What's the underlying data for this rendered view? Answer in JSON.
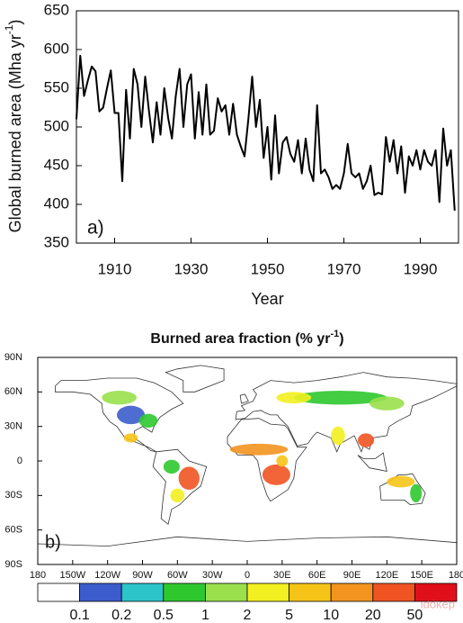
{
  "chart_data": [
    {
      "type": "line",
      "panel_label": "a)",
      "x_label": "Year",
      "y_label": "Global burned area (Mha yr",
      "y_label_sup": "-1",
      "y_label_end": ")",
      "x": [
        1900,
        1901,
        1902,
        1903,
        1904,
        1905,
        1906,
        1907,
        1908,
        1909,
        1910,
        1911,
        1912,
        1913,
        1914,
        1915,
        1916,
        1917,
        1918,
        1919,
        1920,
        1921,
        1922,
        1923,
        1924,
        1925,
        1926,
        1927,
        1928,
        1929,
        1930,
        1931,
        1932,
        1933,
        1934,
        1935,
        1936,
        1937,
        1938,
        1939,
        1940,
        1941,
        1942,
        1943,
        1944,
        1945,
        1946,
        1947,
        1948,
        1949,
        1950,
        1951,
        1952,
        1953,
        1954,
        1955,
        1956,
        1957,
        1958,
        1959,
        1960,
        1961,
        1962,
        1963,
        1964,
        1965,
        1966,
        1967,
        1968,
        1969,
        1970,
        1971,
        1972,
        1973,
        1974,
        1975,
        1976,
        1977,
        1978,
        1979,
        1980,
        1981,
        1982,
        1983,
        1984,
        1985,
        1986,
        1987,
        1988,
        1989,
        1990,
        1991,
        1992,
        1993,
        1994,
        1995,
        1996,
        1997,
        1998,
        1999
      ],
      "values": [
        510,
        592,
        540,
        560,
        578,
        572,
        520,
        525,
        550,
        573,
        518,
        518,
        430,
        548,
        485,
        575,
        555,
        500,
        565,
        520,
        480,
        532,
        490,
        550,
        512,
        485,
        540,
        575,
        500,
        555,
        568,
        485,
        545,
        490,
        555,
        490,
        495,
        537,
        520,
        528,
        490,
        530,
        490,
        475,
        462,
        510,
        565,
        500,
        535,
        460,
        500,
        432,
        515,
        440,
        480,
        487,
        465,
        455,
        483,
        440,
        485,
        445,
        430,
        528,
        440,
        445,
        435,
        420,
        425,
        420,
        440,
        478,
        440,
        435,
        440,
        420,
        430,
        450,
        412,
        415,
        413,
        487,
        455,
        483,
        440,
        475,
        415,
        462,
        450,
        470,
        445,
        470,
        455,
        450,
        470,
        403,
        498,
        450,
        470,
        392
      ],
      "color": "#000000",
      "xlim": [
        1900,
        2000
      ],
      "xticks": [
        1910,
        1930,
        1950,
        1970,
        1990
      ],
      "ylim": [
        350,
        650
      ],
      "yticks": [
        350,
        400,
        450,
        500,
        550,
        600,
        650
      ]
    },
    {
      "type": "map",
      "panel_label": "b)",
      "title": "Burned area fraction (% yr",
      "title_sup": "-1",
      "title_end": ")",
      "xlim": [
        -180,
        180
      ],
      "xticks": [
        {
          "value": -180,
          "label": "180"
        },
        {
          "value": -150,
          "label": "150W"
        },
        {
          "value": -120,
          "label": "120W"
        },
        {
          "value": -90,
          "label": "90W"
        },
        {
          "value": -60,
          "label": "60W"
        },
        {
          "value": -30,
          "label": "30W"
        },
        0,
        {
          "value": 30,
          "label": "30E"
        },
        {
          "value": 60,
          "label": "60E"
        },
        {
          "value": 90,
          "label": "90E"
        },
        {
          "value": 120,
          "label": "120E"
        },
        {
          "value": 150,
          "label": "150E"
        },
        {
          "value": 180,
          "label": "180"
        }
      ],
      "ylim": [
        -90,
        90
      ],
      "yticks": [
        {
          "value": 90,
          "label": "90N"
        },
        {
          "value": 60,
          "label": "60N"
        },
        {
          "value": 30,
          "label": "30N"
        },
        0,
        {
          "value": -30,
          "label": "30S"
        },
        {
          "value": -60,
          "label": "60S"
        },
        {
          "value": -90,
          "label": "90S"
        }
      ],
      "colorbar": {
        "levels": [
          0.1,
          0.2,
          0.5,
          1,
          2,
          5,
          10,
          20,
          50
        ],
        "colors": [
          "#ffffff",
          "#3c5ccc",
          "#2cc4c8",
          "#2ec82e",
          "#9ae04c",
          "#f2f020",
          "#f6c418",
          "#f39420",
          "#f05422",
          "#e0101a"
        ]
      }
    },
    {
      "watermark": "időkép"
    }
  ]
}
